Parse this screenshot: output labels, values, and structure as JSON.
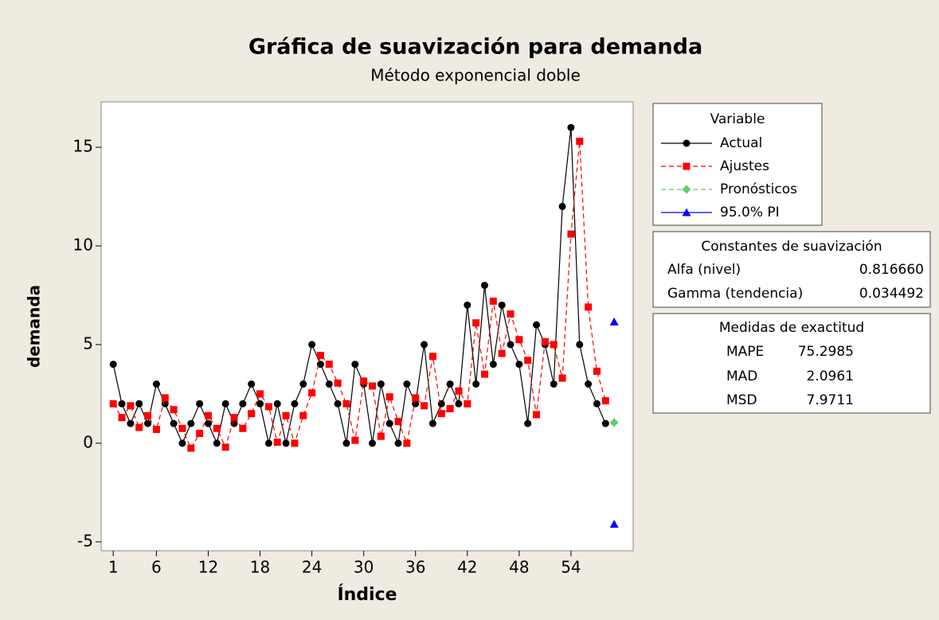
{
  "chart_data": {
    "type": "line",
    "title": "Gráfica de suavización  para demanda",
    "subtitle": "Método exponencial doble",
    "x_label": "Índice",
    "y_label": "demanda",
    "xlim": [
      -0.4,
      61.2
    ],
    "ylim": [
      -5.45,
      17.3
    ],
    "xticks": [
      1,
      6,
      12,
      18,
      24,
      30,
      36,
      42,
      48,
      54
    ],
    "yticks": [
      -5,
      0,
      5,
      10,
      15
    ],
    "legend_title": "Variable",
    "series": [
      {
        "name": "Actual",
        "color": "#000000",
        "marker": "circle",
        "dash": false,
        "x": [
          1,
          2,
          3,
          4,
          5,
          6,
          7,
          8,
          9,
          10,
          11,
          12,
          13,
          14,
          15,
          16,
          17,
          18,
          19,
          20,
          21,
          22,
          23,
          24,
          25,
          26,
          27,
          28,
          29,
          30,
          31,
          32,
          33,
          34,
          35,
          36,
          37,
          38,
          39,
          40,
          41,
          42,
          43,
          44,
          45,
          46,
          47,
          48,
          49,
          50,
          51,
          52,
          53,
          54,
          55,
          56,
          57,
          58
        ],
        "values": [
          4,
          2,
          1,
          2,
          1,
          3,
          2,
          1,
          0,
          1,
          2,
          1,
          0,
          2,
          1,
          2,
          3,
          2,
          0,
          2,
          0,
          2,
          3,
          5,
          4,
          3,
          2,
          0,
          4,
          3,
          0,
          3,
          1,
          0,
          3,
          2,
          5,
          1,
          2,
          3,
          2,
          7,
          3,
          8,
          4,
          7,
          5,
          4,
          1,
          6,
          5,
          3,
          12,
          16,
          5,
          3,
          2,
          1
        ]
      },
      {
        "name": "Ajustes",
        "color": "#ff0000",
        "marker": "square",
        "dash": true,
        "x": [
          1,
          2,
          3,
          4,
          5,
          6,
          7,
          8,
          9,
          10,
          11,
          12,
          13,
          14,
          15,
          16,
          17,
          18,
          19,
          20,
          21,
          22,
          23,
          24,
          25,
          26,
          27,
          28,
          29,
          30,
          31,
          32,
          33,
          34,
          35,
          36,
          37,
          38,
          39,
          40,
          41,
          42,
          43,
          44,
          45,
          46,
          47,
          48,
          49,
          50,
          51,
          52,
          53,
          54,
          55,
          56,
          57,
          58
        ],
        "values": [
          2,
          1.3,
          1.9,
          0.8,
          1.4,
          0.7,
          2.3,
          1.7,
          0.75,
          -0.25,
          0.5,
          1.4,
          0.75,
          -0.2,
          1.3,
          0.75,
          1.5,
          2.5,
          1.85,
          0.05,
          1.4,
          0,
          1.4,
          2.55,
          4.45,
          4,
          3.05,
          2,
          0.15,
          3.15,
          2.9,
          0.35,
          2.35,
          1.1,
          0,
          2.3,
          1.9,
          4.4,
          1.5,
          1.75,
          2.65,
          2,
          6.1,
          3.5,
          7.2,
          4.55,
          6.55,
          5.25,
          4.2,
          1.45,
          5.15,
          5,
          3.3,
          10.6,
          15.3,
          6.9,
          3.65,
          2.15
        ]
      },
      {
        "name": "Pronósticos",
        "color": "#66cc66",
        "marker": "diamond",
        "dash": true,
        "x": [
          59
        ],
        "values": [
          1.05
        ]
      },
      {
        "name": "95.0% PI",
        "color": "#0000ff",
        "marker": "triangle",
        "dash": false,
        "x": [
          59
        ],
        "upper": [
          6.15
        ],
        "lower": [
          -4.1
        ]
      }
    ],
    "smoothing_constants": {
      "title": "Constantes de suavización",
      "rows": [
        {
          "label": "Alfa (nivel)",
          "value": "0.816660"
        },
        {
          "label": "Gamma (tendencia)",
          "value": "0.034492"
        }
      ]
    },
    "accuracy": {
      "title": "Medidas de exactitud",
      "rows": [
        {
          "label": "MAPE",
          "value": "75.2985"
        },
        {
          "label": "MAD",
          "value": "2.0961"
        },
        {
          "label": "MSD",
          "value": "7.9711"
        }
      ]
    }
  }
}
